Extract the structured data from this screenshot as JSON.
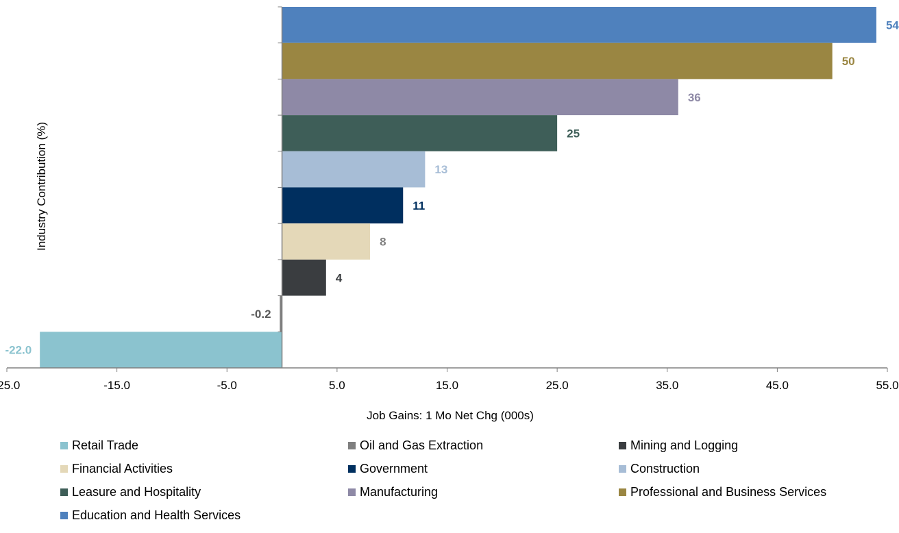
{
  "chart_data": {
    "type": "bar",
    "orientation": "horizontal",
    "xlabel": "Job Gains: 1 Mo Net Chg (000s)",
    "ylabel": "Industry Contribution  (%)",
    "xlim": [
      -25,
      55
    ],
    "x_ticks": [
      "-25.0",
      "-15.0",
      "-5.0",
      "5.0",
      "15.0",
      "25.0",
      "35.0",
      "45.0",
      "55.0"
    ],
    "x_tick_values": [
      -25,
      -15,
      -5,
      5,
      15,
      25,
      35,
      45,
      55
    ],
    "grid": false,
    "legend_placement": "bottom",
    "categories": [
      "Education and Health Services",
      "Professional and Business Services",
      "Manufacturing",
      "Leasure and Hospitality",
      "Construction",
      "Government",
      "Financial Activities",
      "Mining and Logging",
      "Oil and Gas Extraction",
      "Retail Trade"
    ],
    "values": [
      54,
      50,
      36,
      25,
      13,
      11,
      8,
      4,
      -0.2,
      -22.0
    ],
    "value_labels": [
      "54",
      "50",
      "36",
      "25",
      "13",
      "11",
      "8",
      "4",
      "-0.2",
      "-22.0"
    ],
    "colors": [
      "#4f81bd",
      "#9a8642",
      "#8e89a6",
      "#3e5e58",
      "#a7bdd6",
      "#002f5f",
      "#e4d8b8",
      "#3a3d40",
      "#7f7f7f",
      "#8bc3cf"
    ],
    "label_colors": [
      "#4f81bd",
      "#9a8642",
      "#8e89a6",
      "#3e5e58",
      "#a7bdd6",
      "#002f5f",
      "#7f7f7f",
      "#3a3d40",
      "#595959",
      "#8bc3cf"
    ]
  },
  "legend": [
    {
      "label": "Retail Trade",
      "color": "#8bc3cf"
    },
    {
      "label": "Oil and Gas Extraction",
      "color": "#7f7f7f"
    },
    {
      "label": "Mining and Logging",
      "color": "#3a3d40"
    },
    {
      "label": "Financial Activities",
      "color": "#e4d8b8"
    },
    {
      "label": "Government",
      "color": "#002f5f"
    },
    {
      "label": "Construction",
      "color": "#a7bdd6"
    },
    {
      "label": "Leasure and Hospitality",
      "color": "#3e5e58"
    },
    {
      "label": "Manufacturing",
      "color": "#8e89a6"
    },
    {
      "label": "Professional and Business Services",
      "color": "#9a8642"
    },
    {
      "label": "Education and Health Services",
      "color": "#4f81bd"
    }
  ]
}
